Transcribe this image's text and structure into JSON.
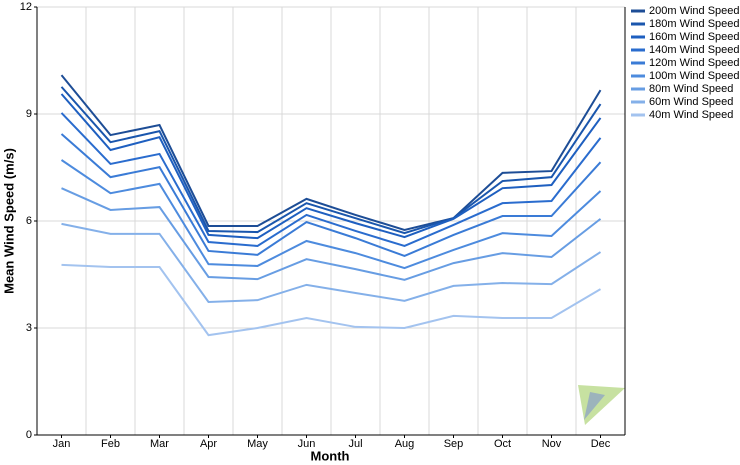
{
  "chart_data": {
    "type": "line",
    "xlabel": "Month",
    "ylabel": "Mean Wind Speed (m/s)",
    "categories": [
      "Jan",
      "Feb",
      "Mar",
      "Apr",
      "May",
      "Jun",
      "Jul",
      "Aug",
      "Sep",
      "Oct",
      "Nov",
      "Dec"
    ],
    "ylim": [
      0,
      12
    ],
    "yticks": [
      0,
      3,
      6,
      9,
      12
    ],
    "grid": true,
    "legend": "right",
    "series": [
      {
        "name": "200m Wind Speed",
        "color": "#1d4d96",
        "values": [
          10.09,
          8.41,
          8.69,
          5.86,
          5.86,
          6.62,
          6.17,
          5.75,
          6.08,
          7.35,
          7.4,
          9.67
        ]
      },
      {
        "name": "180m Wind Speed",
        "color": "#1a56ad",
        "values": [
          9.76,
          8.21,
          8.52,
          5.72,
          5.69,
          6.5,
          6.08,
          5.66,
          6.08,
          7.12,
          7.23,
          9.28
        ]
      },
      {
        "name": "160m Wind Speed",
        "color": "#1e5fc0",
        "values": [
          9.56,
          7.99,
          8.35,
          5.61,
          5.52,
          6.36,
          5.94,
          5.55,
          6.06,
          6.92,
          7.01,
          8.89
        ]
      },
      {
        "name": "140m Wind Speed",
        "color": "#2a6cce",
        "values": [
          9.03,
          7.6,
          7.88,
          5.41,
          5.3,
          6.17,
          5.72,
          5.3,
          5.89,
          6.5,
          6.56,
          8.33
        ]
      },
      {
        "name": "120m Wind Speed",
        "color": "#3a7bd6",
        "values": [
          8.44,
          7.23,
          7.51,
          5.16,
          5.05,
          5.97,
          5.52,
          5.02,
          5.61,
          6.14,
          6.14,
          7.65
        ]
      },
      {
        "name": "100m Wind Speed",
        "color": "#4d8bde",
        "values": [
          7.71,
          6.78,
          7.04,
          4.79,
          4.74,
          5.44,
          5.1,
          4.68,
          5.19,
          5.66,
          5.58,
          6.84
        ]
      },
      {
        "name": "80m Wind Speed",
        "color": "#679de3",
        "values": [
          6.92,
          6.31,
          6.39,
          4.43,
          4.37,
          4.93,
          4.65,
          4.35,
          4.82,
          5.1,
          4.99,
          6.06
        ]
      },
      {
        "name": "60m Wind Speed",
        "color": "#84b0e9",
        "values": [
          5.92,
          5.64,
          5.64,
          3.73,
          3.78,
          4.21,
          3.98,
          3.76,
          4.18,
          4.26,
          4.23,
          5.13
        ]
      },
      {
        "name": "40m Wind Speed",
        "color": "#a3c3ef",
        "values": [
          4.77,
          4.71,
          4.71,
          2.8,
          3.0,
          3.28,
          3.03,
          3.0,
          3.34,
          3.28,
          3.28,
          4.09
        ]
      }
    ]
  }
}
